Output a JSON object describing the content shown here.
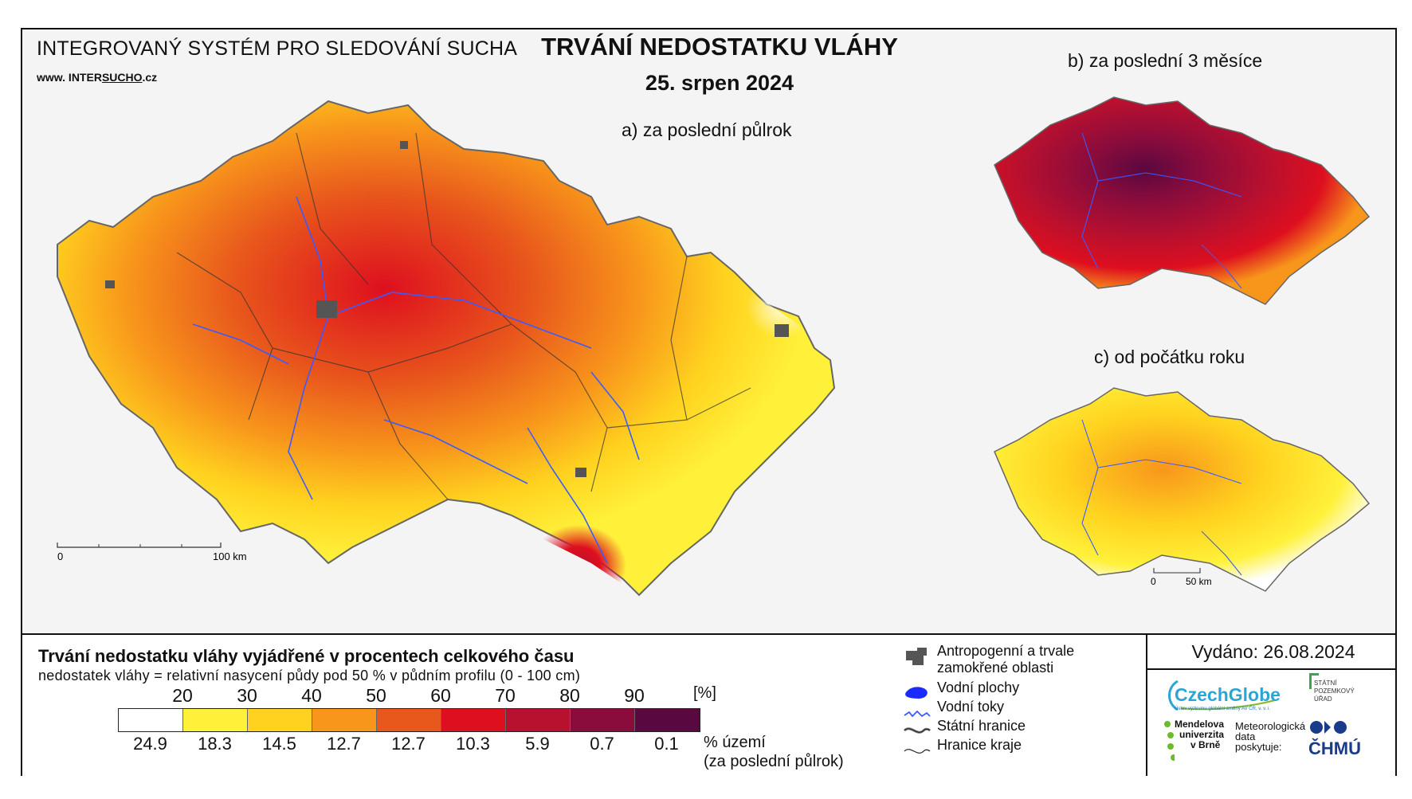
{
  "header": {
    "system_title": "INTEGROVANÝ SYSTÉM PRO SLEDOVÁNÍ SUCHA",
    "website_prefix": "www. INTER",
    "website_highlight": "SUCHO",
    "website_suffix": ".cz",
    "main_title": "TRVÁNÍ NEDOSTATKU VLÁHY",
    "date": "25. srpen 2024"
  },
  "maps": {
    "a_label": "a) za poslední půlrok",
    "b_label": "b) za poslední 3 měsíce",
    "c_label": "c) od počátku roku",
    "scale_a": {
      "zero": "0",
      "end": "100 km"
    },
    "scale_small": {
      "zero": "0",
      "end": "50 km"
    }
  },
  "legend": {
    "title": "Trvání nedostatku vláhy vyjádřené v procentech celkového času",
    "subtitle": "nedostatek vláhy = relativní nasycení půdy pod 50 % v půdním profilu (0 - 100 cm)",
    "thresholds": [
      "20",
      "30",
      "40",
      "50",
      "60",
      "70",
      "80",
      "90"
    ],
    "unit": "[%]",
    "colors": [
      "#ffffff",
      "#fff13a",
      "#ffd21f",
      "#f8961b",
      "#e8571c",
      "#de0f1f",
      "#b8102f",
      "#8a0c3c",
      "#5a0840"
    ],
    "area_percentages": [
      "24.9",
      "18.3",
      "14.5",
      "12.7",
      "12.7",
      "10.3",
      "5.9",
      "0.7",
      "0.1"
    ],
    "area_label_line1": "% území",
    "area_label_line2": "(za poslední půlrok)"
  },
  "symbols": {
    "anthropogenic_line1": "Antropogenní a trvale",
    "anthropogenic_line2": "zamokřené oblasti",
    "water_bodies": "Vodní plochy",
    "water_courses": "Vodní toky",
    "state_border": "Státní hranice",
    "region_border": "Hranice kraje"
  },
  "issued": "Vydáno: 26.08.2024",
  "logos": {
    "czechglobe": "CzechGlobe",
    "czechglobe_sub": "Ústav výzkumu globální změny AV ČR, v. v. i.",
    "spu_line1": "STÁTNÍ",
    "spu_line2": "POZEMKOVÝ",
    "spu_line3": "ÚŘAD",
    "mendelu_line1": "Mendelova",
    "mendelu_line2": "univerzita",
    "mendelu_line3": "v Brně",
    "chmu_prefix_1": "Meteorologická",
    "chmu_prefix_2": "data",
    "chmu_prefix_3": "poskytuje:",
    "chmu": "ČHMÚ"
  }
}
